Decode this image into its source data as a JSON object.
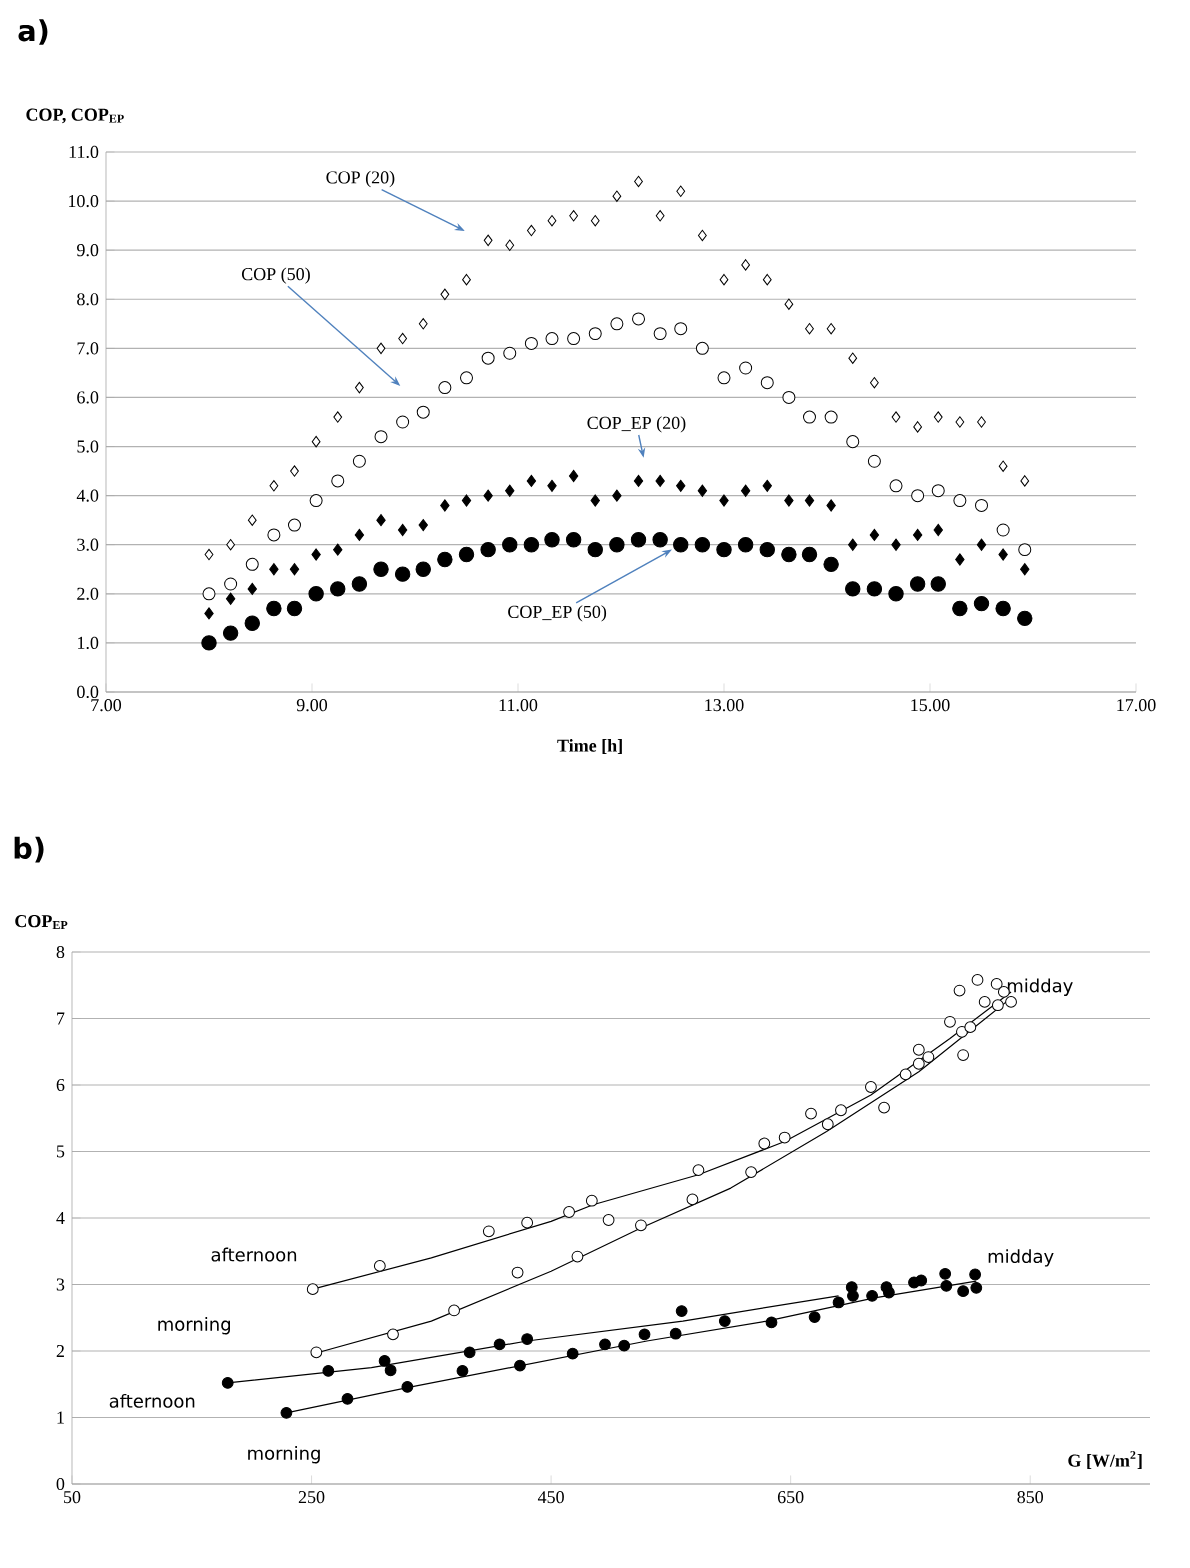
{
  "chart_data": [
    {
      "type": "scatter",
      "title": "a)",
      "xlabel": "Time [h]",
      "ylabel": "COP, COP$_{EP}$",
      "x": [
        8.0,
        8.21,
        8.42,
        8.63,
        8.83,
        9.04,
        9.25,
        9.46,
        9.67,
        9.88,
        10.08,
        10.29,
        10.5,
        10.71,
        10.92,
        11.13,
        11.33,
        11.54,
        11.75,
        11.96,
        12.17,
        12.38,
        12.58,
        12.79,
        13.0,
        13.21,
        13.42,
        13.63,
        13.83,
        14.04,
        14.25,
        14.46,
        14.67,
        14.88,
        15.08,
        15.29,
        15.5,
        15.71,
        15.92
      ],
      "series": [
        {
          "color": "#000000",
          "marker": "diamond",
          "values": [
            2.8,
            3.0,
            3.5,
            4.2,
            4.5,
            5.1,
            5.6,
            6.2,
            7.0,
            7.2,
            7.5,
            8.1,
            8.4,
            9.2,
            9.1,
            9.4,
            9.6,
            9.7,
            9.6,
            10.1,
            10.4,
            9.7,
            10.2,
            9.3,
            8.4,
            8.7,
            8.4,
            7.9,
            7.4,
            7.4,
            6.8,
            6.3,
            5.6,
            5.4,
            5.6,
            5.5,
            5.5,
            4.6,
            4.3
          ]
        },
        {
          "color": "#000000",
          "marker": "circle",
          "values": [
            2.0,
            2.2,
            2.6,
            3.2,
            3.4,
            3.9,
            4.3,
            4.7,
            5.2,
            5.5,
            5.7,
            6.2,
            6.4,
            6.8,
            6.9,
            7.1,
            7.2,
            7.2,
            7.3,
            7.5,
            7.6,
            7.3,
            7.4,
            7.0,
            6.4,
            6.6,
            6.3,
            6.0,
            5.6,
            5.6,
            5.1,
            4.7,
            4.2,
            4.0,
            4.1,
            3.9,
            3.8,
            3.3,
            2.9
          ]
        },
        {
          "color": "#000000",
          "marker": "diamond",
          "values": [
            1.6,
            1.9,
            2.1,
            2.5,
            2.5,
            2.8,
            2.9,
            3.2,
            3.5,
            3.3,
            3.4,
            3.8,
            3.9,
            4.0,
            4.1,
            4.3,
            4.2,
            4.4,
            3.9,
            4.0,
            4.3,
            4.3,
            4.2,
            4.1,
            3.9,
            4.1,
            4.2,
            3.9,
            3.9,
            3.8,
            3.0,
            3.2,
            3.0,
            3.2,
            3.3,
            2.7,
            3.0,
            2.8,
            2.5
          ]
        },
        {
          "color": "#000000",
          "marker": "circle",
          "values": [
            1.0,
            1.2,
            1.4,
            1.7,
            1.7,
            2.0,
            2.1,
            2.2,
            2.5,
            2.4,
            2.5,
            2.7,
            2.8,
            2.9,
            3.0,
            3.0,
            3.1,
            3.1,
            2.9,
            3.0,
            3.1,
            3.1,
            3.0,
            3.0,
            2.9,
            3.0,
            2.9,
            2.8,
            2.8,
            2.6,
            2.1,
            2.1,
            2.0,
            2.2,
            2.2,
            1.7,
            1.8,
            1.7,
            1.5
          ]
        }
      ],
      "annotations": [
        "COP (20)",
        "COP (50)",
        "COP_EP (20)",
        {
          "text": "COP_EP (50)",
          "x": 12.58,
          "y": 3.0
        }
      ],
      "xlim": [
        7,
        17
      ],
      "xticks": [
        {
          "value": 7,
          "label": "7.00"
        },
        {
          "value": 9,
          "label": "9.00"
        },
        {
          "value": 11,
          "label": "11.00"
        },
        {
          "value": 13,
          "label": "13.00"
        },
        {
          "value": 15,
          "label": "15.00"
        },
        {
          "value": 17,
          "label": "17.00"
        }
      ],
      "ylim": [
        0,
        11
      ],
      "yticks": [
        {
          "value": 0,
          "label": "0.0"
        },
        {
          "value": 1,
          "label": "1.0"
        },
        {
          "value": 2,
          "label": "2.0"
        },
        {
          "value": 3,
          "label": "3.0"
        },
        {
          "value": 4,
          "label": "4.0"
        },
        {
          "value": 5,
          "label": "5.0"
        },
        {
          "value": 6,
          "label": "6.0"
        },
        {
          "value": 7,
          "label": "7.0"
        },
        {
          "value": 8,
          "label": "8.0"
        },
        {
          "value": 9,
          "label": "9.0"
        },
        {
          "value": 10,
          "label": "10.0"
        },
        {
          "value": 11,
          "label": "11.0"
        }
      ],
      "grid": "y"
    },
    {
      "type": "scatter",
      "title": "b)",
      "xlabel": "G [W/m$^{2}$]",
      "ylabel": "COP$_{EP}$",
      "series": [
        {
          "color": "#000000",
          "marker": "circle",
          "x": [
            251,
            307,
            398,
            430,
            465,
            484,
            254,
            318,
            369,
            422,
            472,
            498,
            525,
            568,
            573,
            617,
            628,
            645,
            667,
            681,
            692,
            717,
            728,
            746,
            757,
            757,
            765,
            783,
            794,
            793,
            800,
            791,
            806,
            812,
            822,
            823,
            834,
            828
          ],
          "values": [
            2.93,
            3.28,
            3.8,
            3.93,
            4.09,
            4.26,
            1.98,
            2.25,
            2.61,
            3.18,
            3.42,
            3.97,
            3.89,
            4.28,
            4.72,
            4.69,
            5.12,
            5.21,
            5.57,
            5.41,
            5.62,
            5.97,
            5.66,
            6.16,
            6.53,
            6.32,
            6.42,
            6.95,
            6.45,
            6.8,
            6.87,
            7.42,
            7.58,
            7.25,
            7.52,
            7.2,
            7.25,
            7.4
          ]
        },
        {
          "color": "#000000",
          "marker": "circle",
          "x": [
            180,
            264,
            311,
            316,
            382,
            407,
            430,
            229,
            280,
            330,
            376,
            424,
            468,
            495,
            511,
            528,
            554,
            559,
            595,
            634,
            670,
            690,
            701,
            702,
            718,
            730,
            732,
            753,
            759,
            779,
            780,
            794,
            804,
            805
          ],
          "values": [
            1.52,
            1.7,
            1.85,
            1.71,
            1.98,
            2.1,
            2.18,
            1.07,
            1.28,
            1.46,
            1.7,
            1.78,
            1.96,
            2.1,
            2.08,
            2.25,
            2.26,
            2.6,
            2.45,
            2.43,
            2.51,
            2.73,
            2.96,
            2.83,
            2.83,
            2.96,
            2.88,
            3.03,
            3.06,
            3.16,
            2.98,
            2.9,
            3.15,
            2.95
          ]
        },
        {
          "type": "line",
          "color": "#000000",
          "marker": "none",
          "x": [
            251,
            350,
            450,
            485,
            573,
            645,
            717,
            783,
            834
          ],
          "values": [
            2.93,
            3.4,
            3.95,
            4.2,
            4.65,
            5.15,
            5.85,
            6.7,
            7.4
          ]
        },
        {
          "type": "line",
          "color": "#000000",
          "marker": "none",
          "x": [
            254,
            350,
            450,
            525,
            600,
            680,
            757,
            830
          ],
          "values": [
            1.97,
            2.45,
            3.2,
            3.85,
            4.45,
            5.3,
            6.2,
            7.25
          ]
        },
        {
          "type": "line",
          "color": "#000000",
          "marker": "none",
          "x": [
            180,
            300,
            430,
            560,
            690
          ],
          "values": [
            1.52,
            1.75,
            2.15,
            2.45,
            2.83
          ]
        },
        {
          "type": "line",
          "color": "#000000",
          "marker": "none",
          "x": [
            229,
            330,
            430,
            530,
            630,
            720,
            805
          ],
          "values": [
            1.07,
            1.45,
            1.8,
            2.15,
            2.45,
            2.8,
            3.05
          ]
        }
      ],
      "annotations": [
        "afternoon",
        "morning",
        "afternoon",
        "morning",
        "midday",
        "midday"
      ],
      "xlim": [
        50,
        950
      ],
      "xticks": [
        50,
        250,
        450,
        650,
        850
      ],
      "ylim": [
        0,
        8
      ],
      "yticks": [
        0,
        1,
        2,
        3,
        4,
        5,
        6,
        7,
        8
      ],
      "grid": "y"
    }
  ]
}
